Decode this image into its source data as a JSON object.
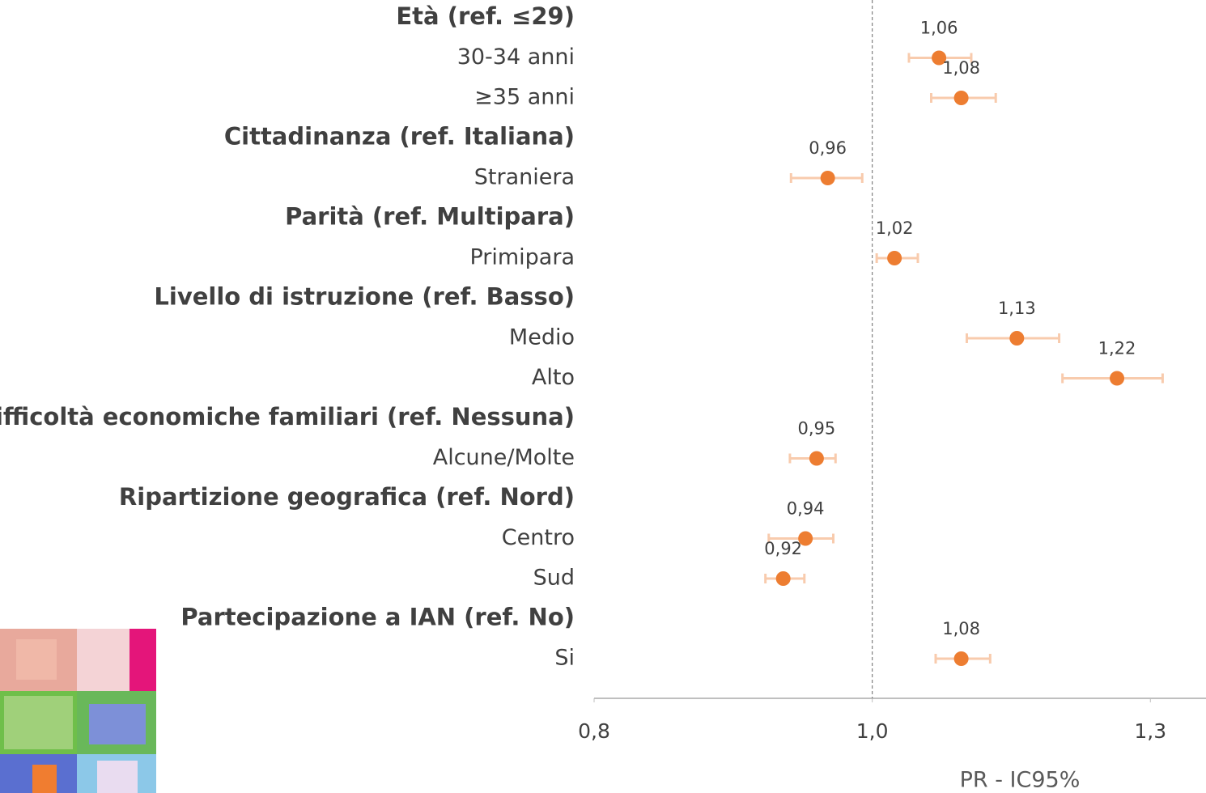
{
  "chart_data": {
    "type": "forest",
    "x_label": "PR - IC95%",
    "categories": [
      "Età (ref. ≤29)",
      "30-34 anni",
      "≥35 anni",
      "Cittadinanza (ref. Italiana)",
      "Straniera",
      "Parità (ref. Multipara)",
      "Primipara",
      "Livello di istruzione (ref. Basso)",
      "Medio",
      "Alto",
      "Difficoltà economiche familiari (ref. Nessuna)",
      "Alcune/Molte",
      "Ripartizione geografica (ref. Nord)",
      "Centro",
      "Sud",
      "Partecipazione a IAN (ref. No)",
      "Si"
    ],
    "values": [
      null,
      1.06,
      1.08,
      null,
      0.96,
      null,
      1.02,
      null,
      1.13,
      1.22,
      null,
      0.95,
      null,
      0.94,
      0.92,
      null,
      1.08
    ],
    "value_labels": [
      null,
      "1,06",
      "1,08",
      null,
      "0,96",
      null,
      "1,02",
      null,
      "1,13",
      "1,22",
      null,
      "0,95",
      null,
      "0,94",
      "0,92",
      null,
      "1,08"
    ],
    "lower": [
      null,
      1.033,
      1.053,
      null,
      0.927,
      null,
      1.004,
      null,
      1.085,
      1.171,
      null,
      0.926,
      null,
      0.907,
      0.904,
      null,
      1.057
    ],
    "upper": [
      null,
      1.089,
      1.111,
      null,
      0.991,
      null,
      1.041,
      null,
      1.168,
      1.261,
      null,
      0.967,
      null,
      0.965,
      0.939,
      null,
      1.106
    ],
    "color": "#ed7d31",
    "ci_color": "#f8cbad",
    "xlim": [
      0.75,
      1.3
    ],
    "xticks": [
      {
        "value": 0.75,
        "label": "0,8"
      },
      {
        "value": 1,
        "label": "1,0"
      },
      {
        "value": 1.25,
        "label": "1,3"
      }
    ],
    "refline": 1
  }
}
